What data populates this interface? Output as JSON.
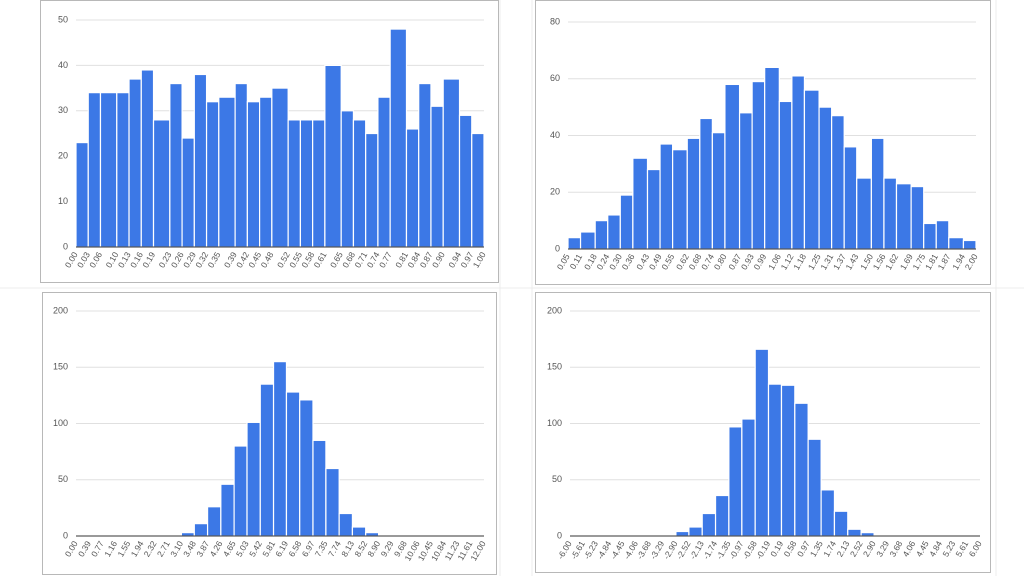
{
  "chart_data": [
    {
      "type": "histogram",
      "color": "#3c78e6",
      "grid": true,
      "bins": [
        0,
        0.03,
        0.06,
        0.1,
        0.13,
        0.16,
        0.19,
        0.23,
        0.26,
        0.29,
        0.32,
        0.35,
        0.39,
        0.42,
        0.45,
        0.48,
        0.52,
        0.55,
        0.58,
        0.61,
        0.65,
        0.68,
        0.71,
        0.74,
        0.77,
        0.81,
        0.84,
        0.87,
        0.9,
        0.94,
        0.97,
        1
      ],
      "values": [
        23,
        34,
        34,
        34,
        37,
        39,
        28,
        36,
        24,
        38,
        32,
        33,
        36,
        32,
        33,
        35,
        28,
        28,
        28,
        40,
        30,
        28,
        25,
        33,
        48,
        26,
        36,
        31,
        37,
        29,
        25
      ],
      "xlim": [
        0,
        1
      ],
      "xticks": [
        {
          "value": 0,
          "label": "0.00"
        },
        0.03,
        0.06,
        {
          "value": 0.1,
          "label": "0.10"
        },
        0.13,
        0.16,
        0.19,
        0.23,
        0.26,
        0.29,
        0.32,
        0.35,
        0.39,
        0.42,
        0.45,
        0.48,
        0.52,
        0.55,
        0.58,
        0.61,
        0.65,
        0.68,
        0.71,
        0.74,
        0.77,
        0.81,
        0.84,
        0.87,
        {
          "value": 0.9,
          "label": "0.90"
        },
        0.94,
        0.97,
        {
          "value": 1,
          "label": "1.00"
        }
      ],
      "ylim": [
        0,
        50
      ],
      "yticks": [
        0,
        10,
        20,
        30,
        40,
        50
      ]
    },
    {
      "type": "histogram",
      "color": "#3c78e6",
      "grid": true,
      "bins": [
        0.05,
        0.11,
        0.18,
        0.24,
        0.3,
        0.36,
        0.43,
        0.49,
        0.55,
        0.62,
        0.68,
        0.74,
        0.8,
        0.87,
        0.93,
        0.99,
        1.06,
        1.12,
        1.18,
        1.25,
        1.31,
        1.37,
        1.43,
        1.5,
        1.56,
        1.62,
        1.69,
        1.75,
        1.81,
        1.87,
        1.94,
        2
      ],
      "values": [
        4,
        6,
        10,
        12,
        19,
        32,
        28,
        37,
        35,
        39,
        46,
        41,
        58,
        48,
        59,
        64,
        52,
        61,
        56,
        50,
        47,
        36,
        25,
        39,
        25,
        23,
        22,
        9,
        10,
        4,
        3
      ],
      "xlim": [
        0.05,
        2
      ],
      "xticks": [
        0.05,
        0.11,
        0.18,
        0.24,
        {
          "value": 0.3,
          "label": "0.30"
        },
        0.36,
        0.43,
        0.49,
        0.55,
        0.62,
        0.68,
        0.74,
        {
          "value": 0.8,
          "label": "0.80"
        },
        0.87,
        0.93,
        0.99,
        1.06,
        1.12,
        1.18,
        1.25,
        1.31,
        1.37,
        1.43,
        {
          "value": 1.5,
          "label": "1.50"
        },
        1.56,
        1.62,
        1.69,
        1.75,
        1.81,
        1.87,
        1.94,
        {
          "value": 2,
          "label": "2.00"
        }
      ],
      "ylim": [
        0,
        80
      ],
      "yticks": [
        0,
        20,
        40,
        60,
        80
      ]
    },
    {
      "type": "histogram",
      "color": "#3c78e6",
      "grid": true,
      "bins": [
        0,
        0.39,
        0.77,
        1.16,
        1.55,
        1.94,
        2.32,
        2.71,
        3.1,
        3.48,
        3.87,
        4.26,
        4.65,
        5.03,
        5.42,
        5.81,
        6.19,
        6.58,
        6.97,
        7.35,
        7.74,
        8.13,
        8.52,
        8.9,
        9.29,
        9.68,
        10.06,
        10.45,
        10.84,
        11.23,
        11.61,
        12
      ],
      "values": [
        0,
        0,
        0,
        0,
        0,
        0,
        0,
        1,
        3,
        11,
        26,
        46,
        80,
        101,
        135,
        155,
        128,
        121,
        85,
        60,
        20,
        8,
        3,
        1,
        0,
        0,
        0,
        0,
        0,
        0,
        0
      ],
      "xlim": [
        0,
        12
      ],
      "xticks": [
        {
          "value": 0,
          "label": "0.00"
        },
        0.39,
        0.77,
        1.16,
        1.55,
        1.94,
        2.32,
        2.71,
        {
          "value": 3.1,
          "label": "3.10"
        },
        3.48,
        3.87,
        4.26,
        4.65,
        5.03,
        5.42,
        5.81,
        6.19,
        6.58,
        6.97,
        7.35,
        7.74,
        8.13,
        8.52,
        {
          "value": 8.9,
          "label": "8.90"
        },
        9.29,
        9.68,
        10.06,
        10.45,
        10.84,
        11.23,
        11.61,
        {
          "value": 12,
          "label": "12.00"
        }
      ],
      "ylim": [
        0,
        200
      ],
      "yticks": [
        0,
        50,
        100,
        150,
        200
      ]
    },
    {
      "type": "histogram",
      "color": "#3c78e6",
      "grid": true,
      "bins": [
        -6,
        -5.61,
        -5.23,
        -4.84,
        -4.45,
        -4.06,
        -3.68,
        -3.29,
        -2.9,
        -2.52,
        -2.13,
        -1.74,
        -1.35,
        -0.97,
        -0.58,
        -0.19,
        0.19,
        0.58,
        0.97,
        1.35,
        1.74,
        2.13,
        2.52,
        2.9,
        3.29,
        3.68,
        4.06,
        4.45,
        4.84,
        5.23,
        5.61,
        6
      ],
      "values": [
        0,
        0,
        0,
        0,
        0,
        0,
        0,
        0,
        4,
        8,
        20,
        36,
        97,
        104,
        166,
        135,
        134,
        118,
        86,
        41,
        22,
        6,
        3,
        0,
        0,
        0,
        0,
        0,
        0,
        0,
        0
      ],
      "xlim": [
        -6,
        6
      ],
      "xticks": [
        {
          "value": -6,
          "label": "-6.00"
        },
        -5.61,
        -5.23,
        -4.84,
        -4.45,
        -4.06,
        -3.68,
        -3.29,
        {
          "value": -2.9,
          "label": "-2.90"
        },
        -2.52,
        -2.13,
        -1.74,
        -1.35,
        -0.97,
        -0.58,
        -0.19,
        0.19,
        0.58,
        0.97,
        1.35,
        1.74,
        2.13,
        2.52,
        {
          "value": 2.9,
          "label": "2.90"
        },
        3.29,
        3.68,
        4.06,
        4.45,
        4.84,
        5.23,
        5.61,
        {
          "value": 6,
          "label": "6.00"
        }
      ],
      "ylim": [
        0,
        200
      ],
      "yticks": [
        0,
        50,
        100,
        150,
        200
      ]
    }
  ]
}
